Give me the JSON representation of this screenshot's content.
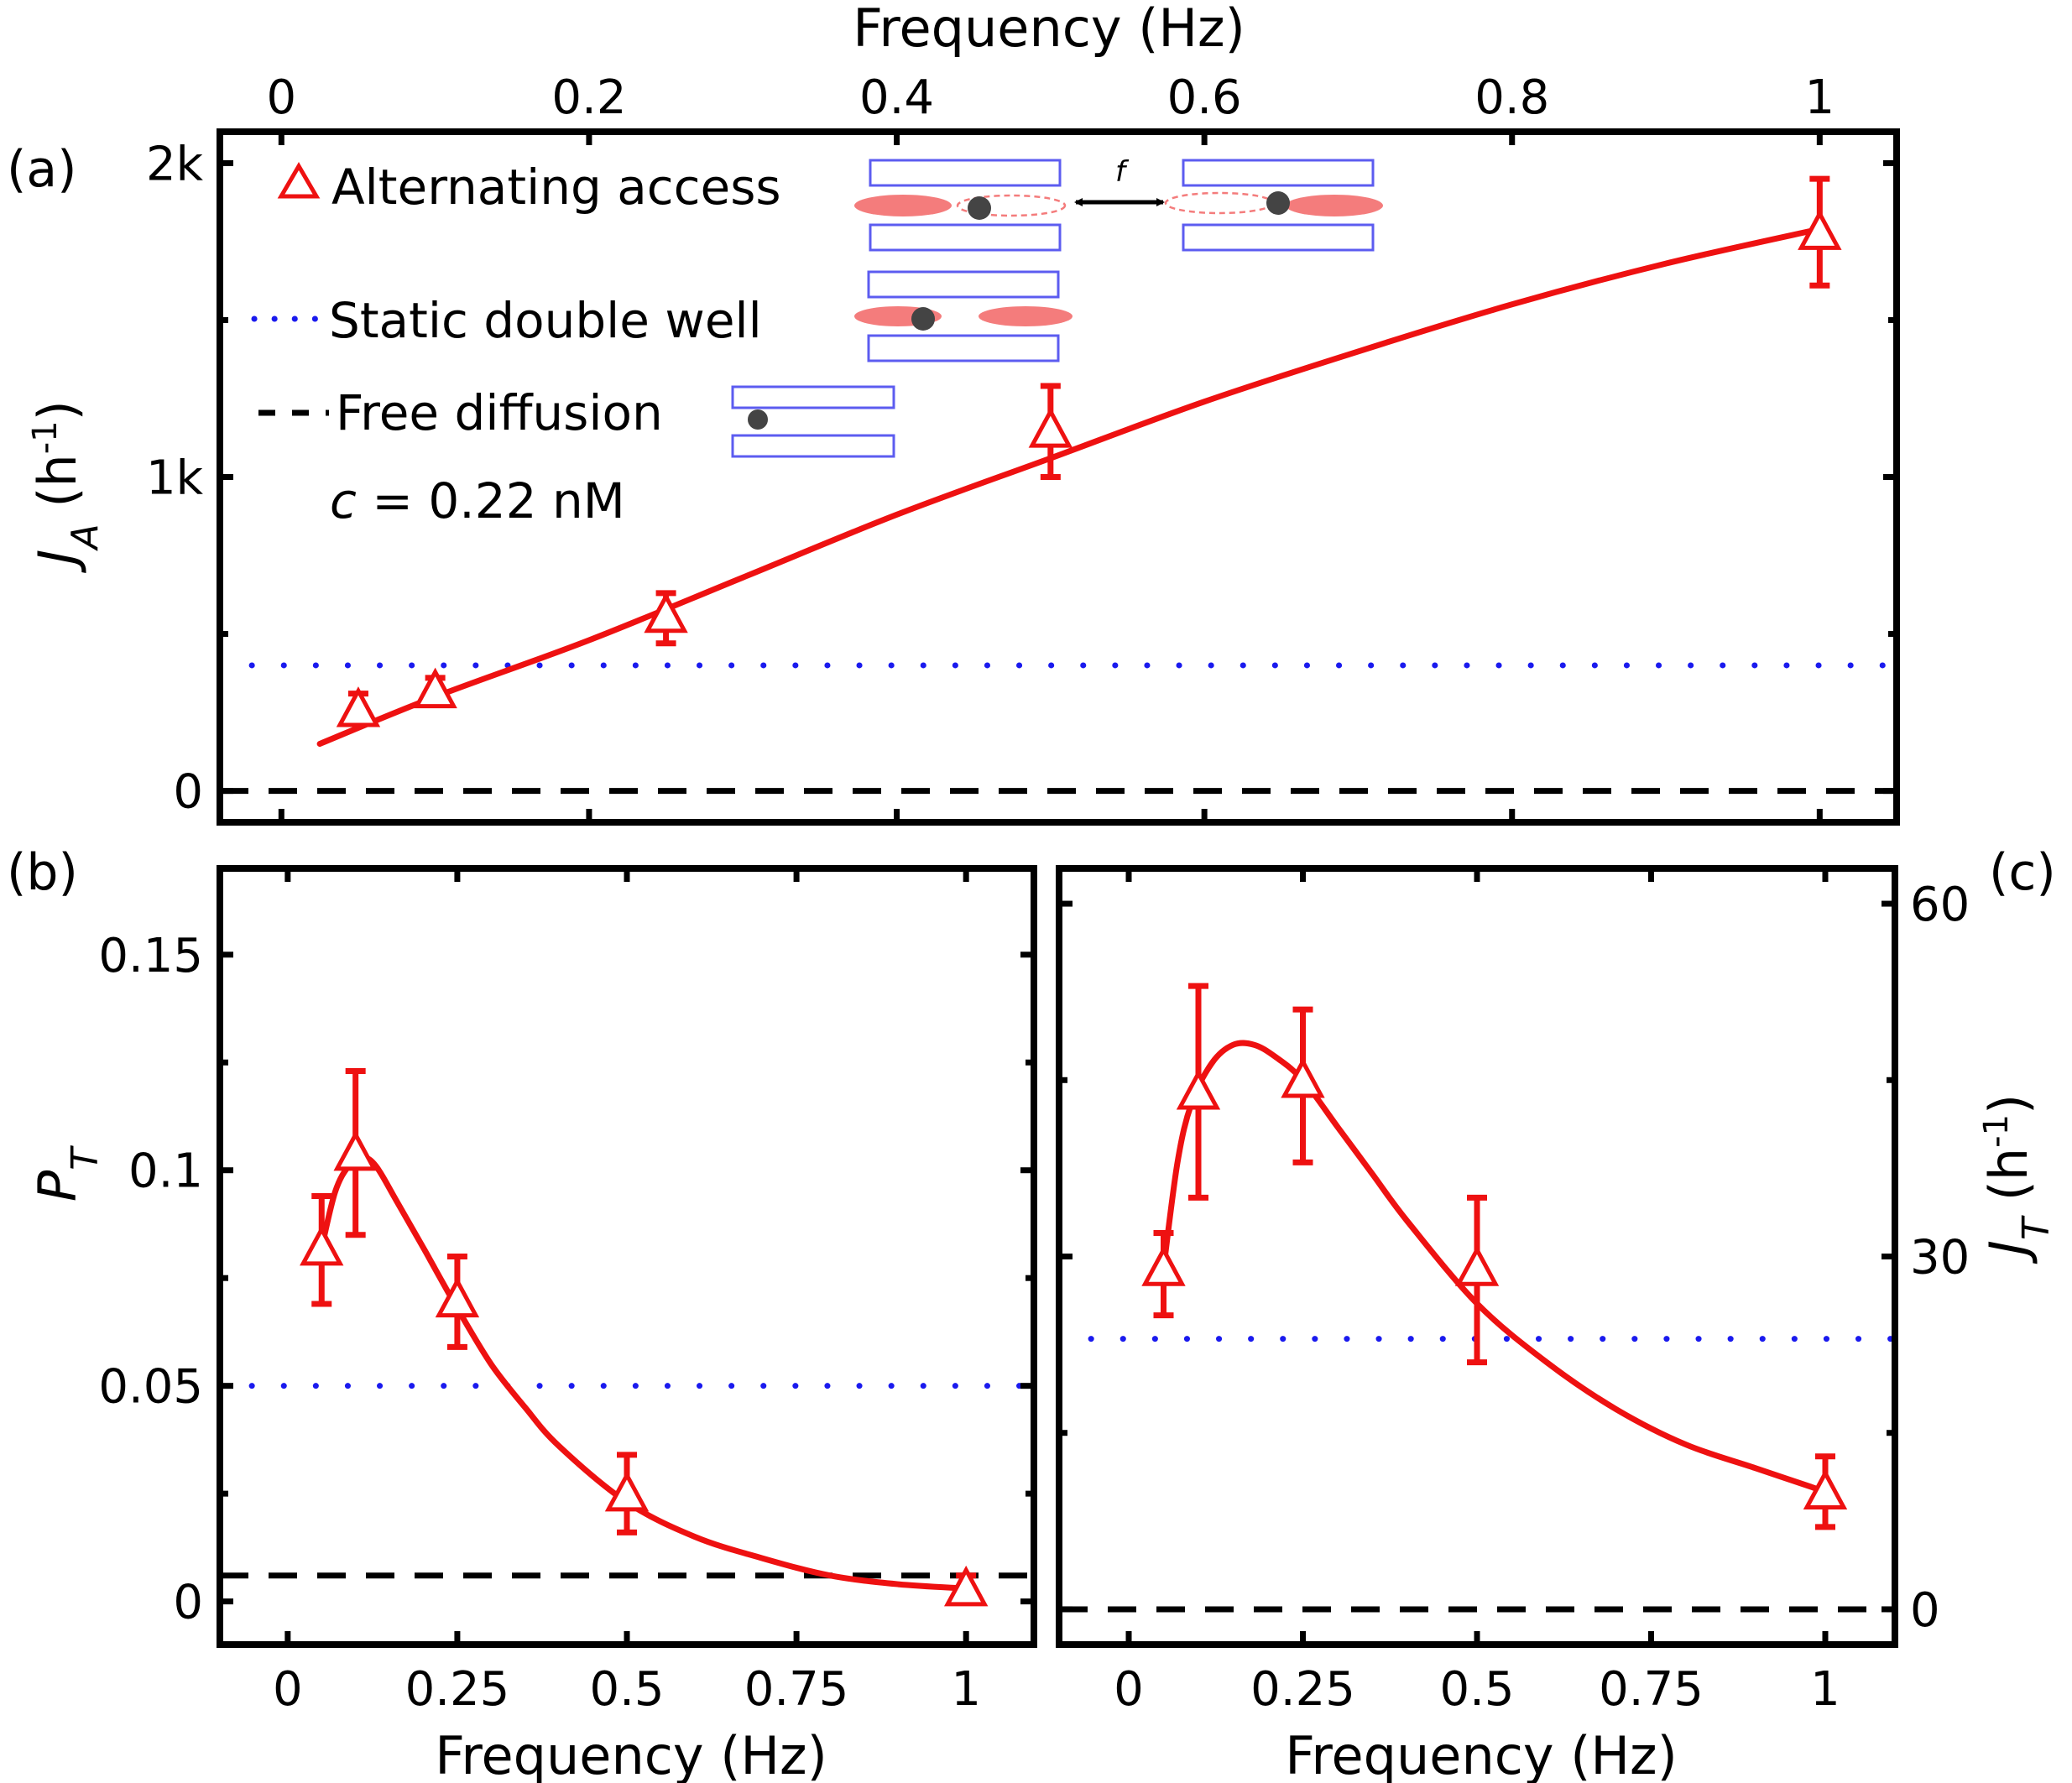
{
  "figure": {
    "top_axis_title": "Frequency (Hz)",
    "bottom_axis_title_b": "Frequency (Hz)",
    "bottom_axis_title_c": "Frequency (Hz)"
  },
  "colors": {
    "data": "#ee1111",
    "static_double_well": "#1a1aee",
    "free_diffusion": "#000000",
    "pore": "#5c5cf0",
    "well": "#f47c7c"
  },
  "legend": {
    "alternating_access": "Alternating access",
    "static_double_well": "Static double well",
    "free_diffusion": "Free diffusion",
    "concentration_c": "c",
    "concentration_rest": " = 0.22 nM",
    "inset_switch_label": "f"
  },
  "chart_data": [
    {
      "panel": "(a)",
      "type": "scatter",
      "xlabel": "Frequency (Hz)",
      "ylabel_main": "J",
      "ylabel_sub": "A",
      "ylabel_unit": " (h",
      "ylabel_sup": "-1",
      "ylabel_close": ")",
      "xlim": [
        -0.04,
        1.05
      ],
      "ylim": [
        -100,
        2100
      ],
      "xticks": [
        0,
        0.2,
        0.4,
        0.6,
        0.8,
        1
      ],
      "xtick_labels": [
        "0",
        "0.2",
        "0.4",
        "0.6",
        "0.8",
        "1"
      ],
      "yticks": [
        0,
        1000,
        2000
      ],
      "ytick_labels": [
        "0",
        "1k",
        "2k"
      ],
      "minor_yticks": [
        500,
        1500
      ],
      "points": {
        "x": [
          0.05,
          0.1,
          0.25,
          0.5,
          1.0
        ],
        "y": [
          260,
          320,
          560,
          1150,
          1780
        ],
        "err_low": [
          40,
          30,
          90,
          150,
          170
        ],
        "err_high": [
          50,
          40,
          70,
          140,
          170
        ]
      },
      "fit": {
        "x": [
          0.025,
          0.1,
          0.2,
          0.3,
          0.4,
          0.5,
          0.6,
          0.7,
          0.8,
          0.9,
          1.0
        ],
        "y": [
          150,
          300,
          480,
          680,
          880,
          1060,
          1240,
          1400,
          1550,
          1680,
          1790
        ]
      },
      "static_double_well": 400,
      "free_diffusion": 0
    },
    {
      "panel": "(b)",
      "type": "scatter",
      "xlabel": "Frequency (Hz)",
      "ylabel_main": "P",
      "ylabel_sub": "T",
      "xlim": [
        -0.1,
        1.1
      ],
      "ylim": [
        -0.01,
        0.17
      ],
      "xticks": [
        0,
        0.25,
        0.5,
        0.75,
        1
      ],
      "xtick_labels": [
        "0",
        "0.25",
        "0.5",
        "0.75",
        "1"
      ],
      "yticks": [
        0,
        0.05,
        0.1,
        0.15
      ],
      "ytick_labels": [
        "0",
        "0.05",
        "0.1",
        "0.15"
      ],
      "minor_yticks": [
        0.025,
        0.075,
        0.125
      ],
      "points": {
        "x": [
          0.05,
          0.1,
          0.25,
          0.5,
          1.0
        ],
        "y": [
          0.082,
          0.104,
          0.07,
          0.025,
          0.003
        ],
        "err_low": [
          0.013,
          0.019,
          0.011,
          0.009,
          0.001
        ],
        "err_high": [
          0.012,
          0.019,
          0.01,
          0.009,
          0.003
        ]
      },
      "fit": {
        "x": [
          0.05,
          0.07,
          0.09,
          0.11,
          0.13,
          0.16,
          0.2,
          0.25,
          0.3,
          0.35,
          0.4,
          0.5,
          0.6,
          0.7,
          0.8,
          0.9,
          1.0
        ],
        "y": [
          0.082,
          0.095,
          0.101,
          0.103,
          0.101,
          0.093,
          0.082,
          0.068,
          0.055,
          0.045,
          0.036,
          0.023,
          0.015,
          0.01,
          0.006,
          0.004,
          0.003
        ]
      },
      "static_double_well": 0.05,
      "free_diffusion": 0.006
    },
    {
      "panel": "(c)",
      "type": "scatter",
      "xlabel": "Frequency (Hz)",
      "ylabel_main": "J",
      "ylabel_sub": "T",
      "ylabel_unit": " (h",
      "ylabel_sup": "-1",
      "ylabel_close": ")",
      "xlim": [
        -0.1,
        1.1
      ],
      "ylim": [
        -3,
        63
      ],
      "xticks": [
        0,
        0.25,
        0.5,
        0.75,
        1
      ],
      "xtick_labels": [
        "0",
        "0.25",
        "0.5",
        "0.75",
        "1"
      ],
      "yticks": [
        0,
        30,
        60
      ],
      "ytick_labels": [
        "0",
        "30",
        "60"
      ],
      "minor_yticks": [
        15,
        45
      ],
      "points": {
        "x": [
          0.05,
          0.1,
          0.25,
          0.5,
          1.0
        ],
        "y": [
          29,
          44,
          45,
          29,
          10
        ],
        "err_low": [
          4,
          9,
          7,
          8,
          3
        ],
        "err_high": [
          3,
          9,
          6,
          6,
          3
        ]
      },
      "fit": {
        "x": [
          0.05,
          0.07,
          0.09,
          0.12,
          0.15,
          0.18,
          0.21,
          0.25,
          0.3,
          0.35,
          0.4,
          0.5,
          0.6,
          0.7,
          0.8,
          0.9,
          1.0
        ],
        "y": [
          29,
          38,
          43,
          46.5,
          48,
          48,
          47,
          45,
          41,
          37,
          33,
          26,
          21,
          17,
          14,
          12,
          10
        ]
      },
      "static_double_well": 23,
      "free_diffusion": 0
    }
  ]
}
